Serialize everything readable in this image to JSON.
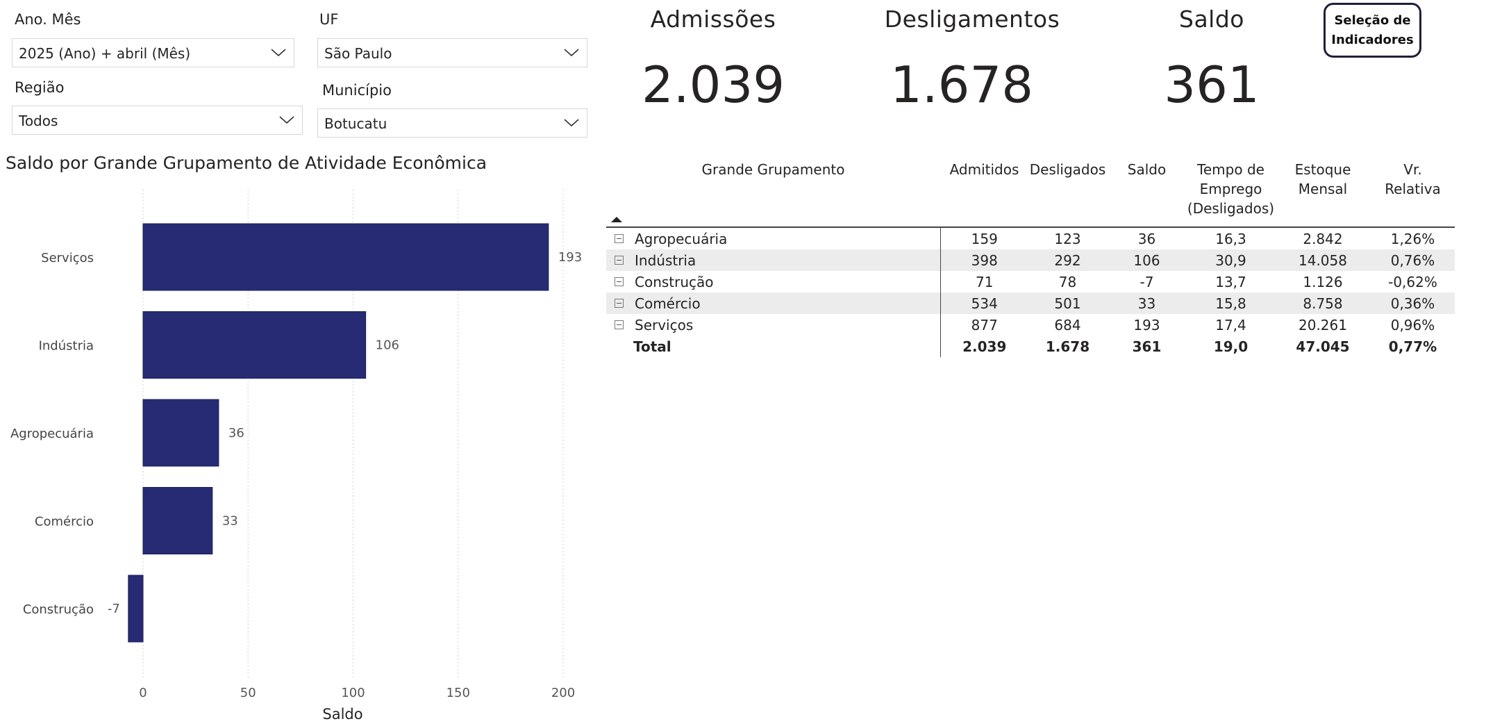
{
  "filters": {
    "ano_mes": {
      "label": "Ano. Mês",
      "value": "2025 (Ano) + abril (Mês)"
    },
    "uf": {
      "label": "UF",
      "value": "São Paulo"
    },
    "regiao": {
      "label": "Região",
      "value": "Todos"
    },
    "municipio": {
      "label": "Município",
      "value": "Botucatu"
    }
  },
  "kpis": {
    "admissoes": {
      "label": "Admissões",
      "value": "2.039"
    },
    "desligamentos": {
      "label": "Desligamentos",
      "value": "1.678"
    },
    "saldo": {
      "label": "Saldo",
      "value": "361"
    }
  },
  "selection_button": {
    "line1": "Seleção de",
    "line2": "Indicadores"
  },
  "chart_data": {
    "type": "bar",
    "orientation": "horizontal",
    "title": "Saldo por Grande Grupamento de Atividade Econômica",
    "xlabel": "Saldo",
    "ylabel": "",
    "categories": [
      "Serviços",
      "Indústria",
      "Agropecuária",
      "Comércio",
      "Construção"
    ],
    "values": [
      193,
      106,
      36,
      33,
      -7
    ],
    "xlim": [
      -7,
      200
    ],
    "xticks": [
      0,
      50,
      100,
      150,
      200
    ],
    "bar_color": "#262b73",
    "grid": "vertical-dotted"
  },
  "table": {
    "headers": {
      "grupo": "Grande Grupamento",
      "admitidos": "Admitidos",
      "desligados": "Desligados",
      "saldo": "Saldo",
      "tempo_l1": "Tempo de",
      "tempo_l2": "Emprego",
      "tempo_l3": "(Desligados)",
      "estoque_l1": "Estoque",
      "estoque_l2": "Mensal",
      "vr_l1": "Vr.",
      "vr_l2": "Relativa"
    },
    "rows": [
      {
        "grupo": "Agropecuária",
        "admitidos": "159",
        "desligados": "123",
        "saldo": "36",
        "tempo": "16,3",
        "estoque": "2.842",
        "vr": "1,26%"
      },
      {
        "grupo": "Indústria",
        "admitidos": "398",
        "desligados": "292",
        "saldo": "106",
        "tempo": "30,9",
        "estoque": "14.058",
        "vr": "0,76%"
      },
      {
        "grupo": "Construção",
        "admitidos": "71",
        "desligados": "78",
        "saldo": "-7",
        "tempo": "13,7",
        "estoque": "1.126",
        "vr": "-0,62%"
      },
      {
        "grupo": "Comércio",
        "admitidos": "534",
        "desligados": "501",
        "saldo": "33",
        "tempo": "15,8",
        "estoque": "8.758",
        "vr": "0,36%"
      },
      {
        "grupo": "Serviços",
        "admitidos": "877",
        "desligados": "684",
        "saldo": "193",
        "tempo": "17,4",
        "estoque": "20.261",
        "vr": "0,96%"
      }
    ],
    "total": {
      "grupo": "Total",
      "admitidos": "2.039",
      "desligados": "1.678",
      "saldo": "361",
      "tempo": "19,0",
      "estoque": "47.045",
      "vr": "0,77%"
    }
  }
}
